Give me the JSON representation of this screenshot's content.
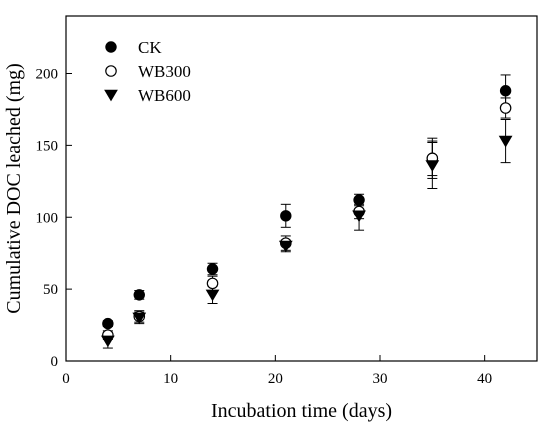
{
  "chart_data": {
    "type": "scatter",
    "title": "",
    "xlabel": "Incubation time (days)",
    "ylabel": "Cumulative DOC leached (mg)",
    "xlim": [
      0,
      45
    ],
    "ylim": [
      0,
      240
    ],
    "xticks": [
      0,
      10,
      20,
      30,
      40
    ],
    "yticks": [
      0,
      50,
      100,
      150,
      200
    ],
    "grid": false,
    "legend_position": "top-left",
    "series": [
      {
        "name": "CK",
        "marker": "filled-circle",
        "color": "#000000",
        "points": [
          {
            "x": 4,
            "y": 26,
            "err": 2
          },
          {
            "x": 7,
            "y": 46,
            "err": 3
          },
          {
            "x": 14,
            "y": 64,
            "err": 4
          },
          {
            "x": 21,
            "y": 101,
            "err": 8
          },
          {
            "x": 28,
            "y": 112,
            "err": 4
          },
          {
            "x": 35,
            "y": 141,
            "err": 14
          },
          {
            "x": 42,
            "y": 188,
            "err": 11
          }
        ]
      },
      {
        "name": "WB300",
        "marker": "open-circle",
        "color": "#000000",
        "points": [
          {
            "x": 4,
            "y": 18,
            "err": 3
          },
          {
            "x": 7,
            "y": 31,
            "err": 4
          },
          {
            "x": 14,
            "y": 54,
            "err": 5
          },
          {
            "x": 21,
            "y": 82,
            "err": 5
          },
          {
            "x": 28,
            "y": 104,
            "err": 5
          },
          {
            "x": 35,
            "y": 141,
            "err": 12
          },
          {
            "x": 42,
            "y": 176,
            "err": 7
          }
        ]
      },
      {
        "name": "WB600",
        "marker": "filled-triangle-down",
        "color": "#000000",
        "points": [
          {
            "x": 4,
            "y": 14,
            "err": 5
          },
          {
            "x": 7,
            "y": 30,
            "err": 4
          },
          {
            "x": 14,
            "y": 46,
            "err": 6
          },
          {
            "x": 21,
            "y": 80,
            "err": 4
          },
          {
            "x": 28,
            "y": 101,
            "err": 10
          },
          {
            "x": 35,
            "y": 136,
            "err": 16
          },
          {
            "x": 42,
            "y": 153,
            "err": 15
          }
        ]
      }
    ]
  }
}
